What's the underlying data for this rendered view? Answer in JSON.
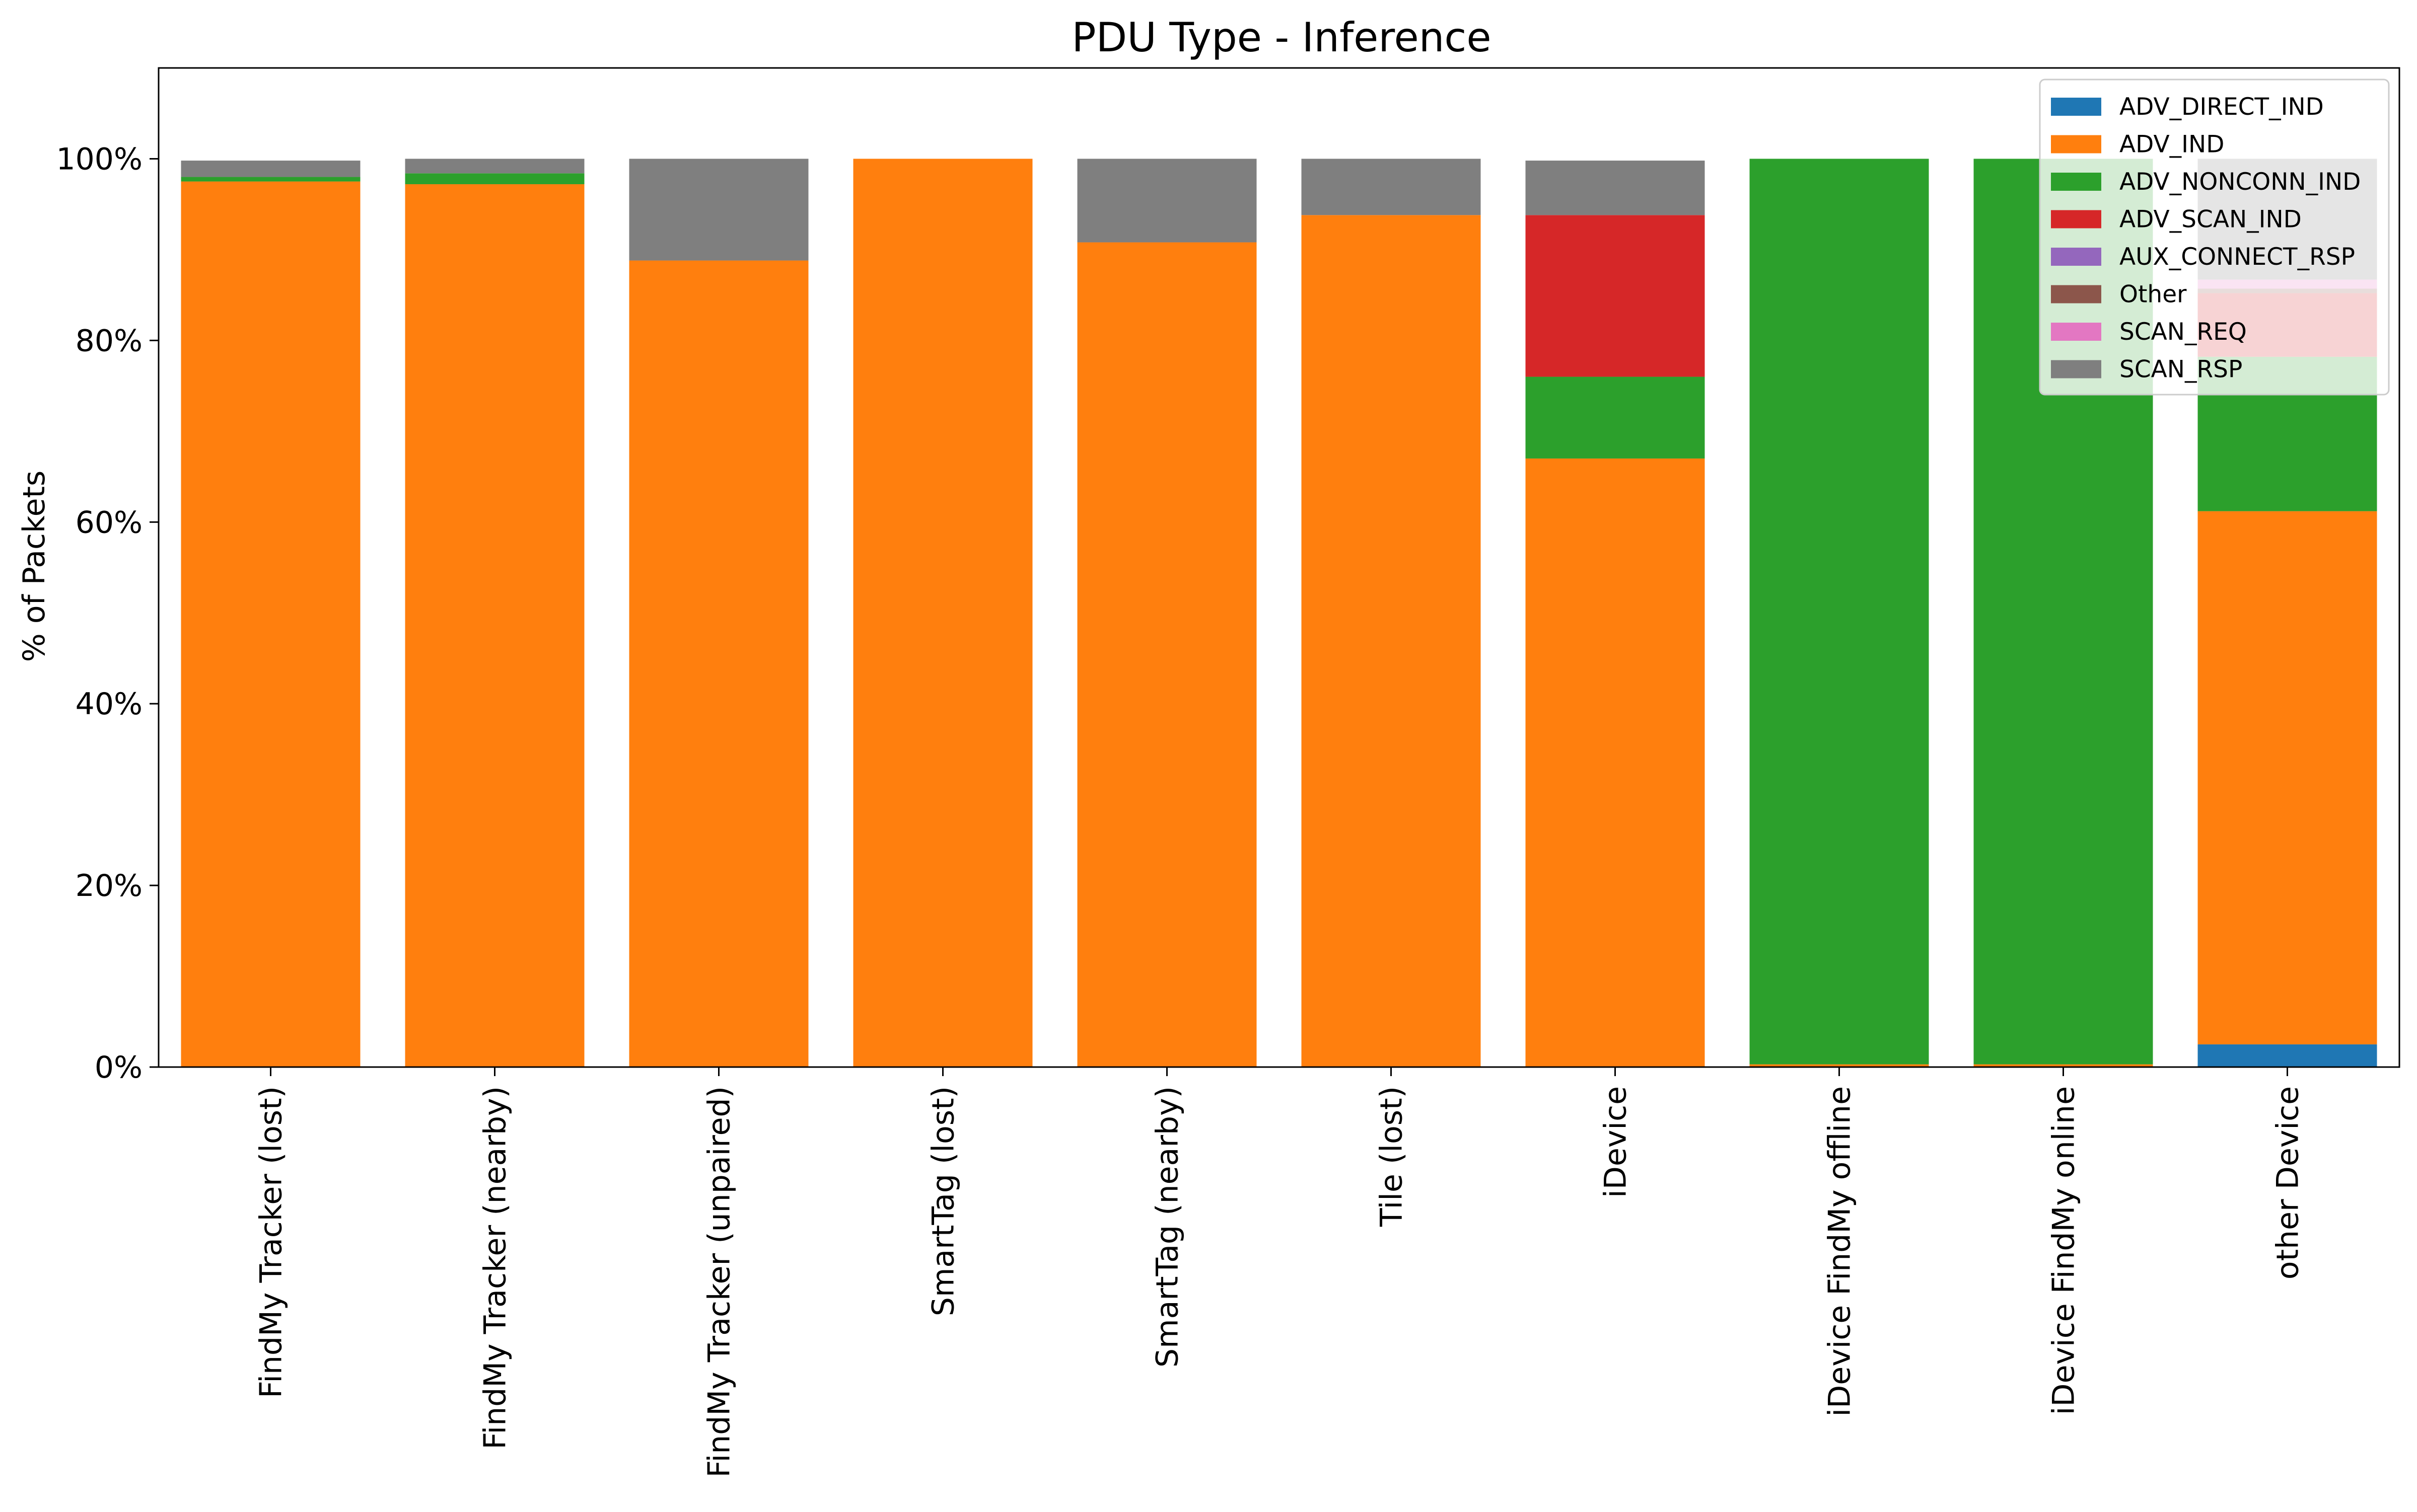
{
  "chart_data": {
    "type": "bar",
    "stacked": true,
    "title": "PDU Type - Inference",
    "xlabel": "",
    "ylabel": "% of Packets",
    "ylim": [
      0,
      1.1
    ],
    "yticks": [
      0,
      0.2,
      0.4,
      0.6,
      0.8,
      1.0
    ],
    "ytick_labels": [
      "0%",
      "20%",
      "40%",
      "60%",
      "80%",
      "100%"
    ],
    "grid": false,
    "legend_position": "top-right",
    "categories": [
      "FindMy Tracker (lost)",
      "FindMy Tracker (nearby)",
      "FindMy Tracker (unpaired)",
      "SmartTag (lost)",
      "SmartTag (nearby)",
      "Tile (lost)",
      "iDevice",
      "iDevice FindMy offline",
      "iDevice FindMy online",
      "other Device"
    ],
    "series": [
      {
        "name": "ADV_DIRECT_IND",
        "color": "#1f77b4",
        "values": [
          0,
          0,
          0,
          0,
          0,
          0,
          0,
          0,
          0,
          0.025
        ]
      },
      {
        "name": "ADV_IND",
        "color": "#ff7f0e",
        "values": [
          0.975,
          0.972,
          0.888,
          1.0,
          0.908,
          0.938,
          0.67,
          0.003,
          0.003,
          0.587
        ]
      },
      {
        "name": "ADV_NONCONN_IND",
        "color": "#2ca02c",
        "values": [
          0.005,
          0.012,
          0,
          0,
          0,
          0,
          0.09,
          0.997,
          0.997,
          0.17
        ]
      },
      {
        "name": "ADV_SCAN_IND",
        "color": "#d62728",
        "values": [
          0,
          0,
          0,
          0,
          0,
          0,
          0.178,
          0,
          0,
          0.07
        ]
      },
      {
        "name": "AUX_CONNECT_RSP",
        "color": "#9467bd",
        "values": [
          0,
          0,
          0,
          0,
          0,
          0,
          0,
          0,
          0,
          0
        ]
      },
      {
        "name": "Other",
        "color": "#8c564b",
        "values": [
          0,
          0,
          0,
          0,
          0,
          0,
          0,
          0,
          0,
          0.005
        ]
      },
      {
        "name": "SCAN_REQ",
        "color": "#e377c2",
        "values": [
          0,
          0,
          0,
          0,
          0,
          0,
          0,
          0,
          0,
          0.01
        ]
      },
      {
        "name": "SCAN_RSP",
        "color": "#7f7f7f",
        "values": [
          0.018,
          0.016,
          0.112,
          0,
          0.092,
          0.062,
          0.06,
          0,
          0,
          0.133
        ]
      }
    ]
  }
}
